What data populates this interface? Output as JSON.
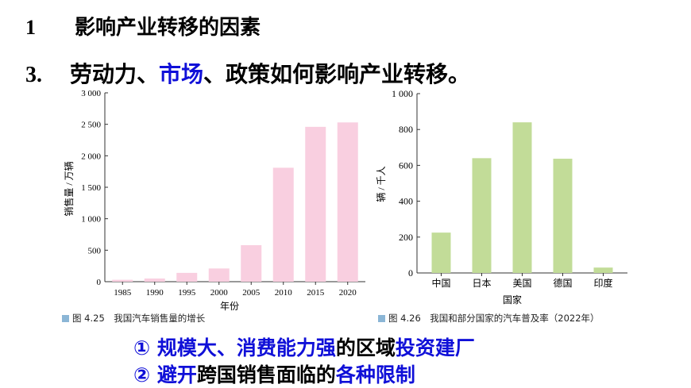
{
  "heading": {
    "number": "1",
    "title": "影响产业转移的因素"
  },
  "subheading": {
    "number": "3.",
    "parts": [
      {
        "text": "劳动力、",
        "color": "#000000"
      },
      {
        "text": "市场",
        "color": "#1010d8"
      },
      {
        "text": "、政策如何影响产业转移。",
        "color": "#000000"
      }
    ]
  },
  "chart_data": [
    {
      "type": "bar",
      "categories": [
        "1985",
        "1990",
        "1995",
        "2000",
        "2005",
        "2010",
        "2015",
        "2020"
      ],
      "values": [
        30,
        50,
        140,
        210,
        580,
        1810,
        2460,
        2530
      ],
      "xlabel": "年份",
      "ylabel": "销售量 / 万辆",
      "ylim": [
        0,
        3000
      ],
      "yticks": [
        "0",
        "500",
        "1 000",
        "1 500",
        "2 000",
        "2 500",
        "3 000"
      ],
      "bar_color": "#f9cfe0",
      "caption": "图 4.25　我国汽车销售量的增长"
    },
    {
      "type": "bar",
      "categories": [
        "中国",
        "日本",
        "美国",
        "德国",
        "印度"
      ],
      "values": [
        225,
        640,
        840,
        637,
        30
      ],
      "xlabel": "国家",
      "ylabel": "辆 / 千人",
      "ylim": [
        0,
        1000
      ],
      "yticks": [
        "0",
        "200",
        "400",
        "600",
        "800",
        "1 000"
      ],
      "bar_color": "#c2dc98",
      "caption": "图 4.26　我国和部分国家的汽车普及率（2022年）"
    }
  ],
  "points": [
    [
      {
        "text": "① 规模大、消费能力强",
        "color": "#1010d8"
      },
      {
        "text": "的区域",
        "color": "#000000"
      },
      {
        "text": "投资建厂",
        "color": "#1010d8"
      }
    ],
    [
      {
        "text": "② 避开",
        "color": "#1010d8"
      },
      {
        "text": "跨国销售面临的",
        "color": "#000000"
      },
      {
        "text": "各种限制",
        "color": "#1010d8"
      }
    ]
  ]
}
